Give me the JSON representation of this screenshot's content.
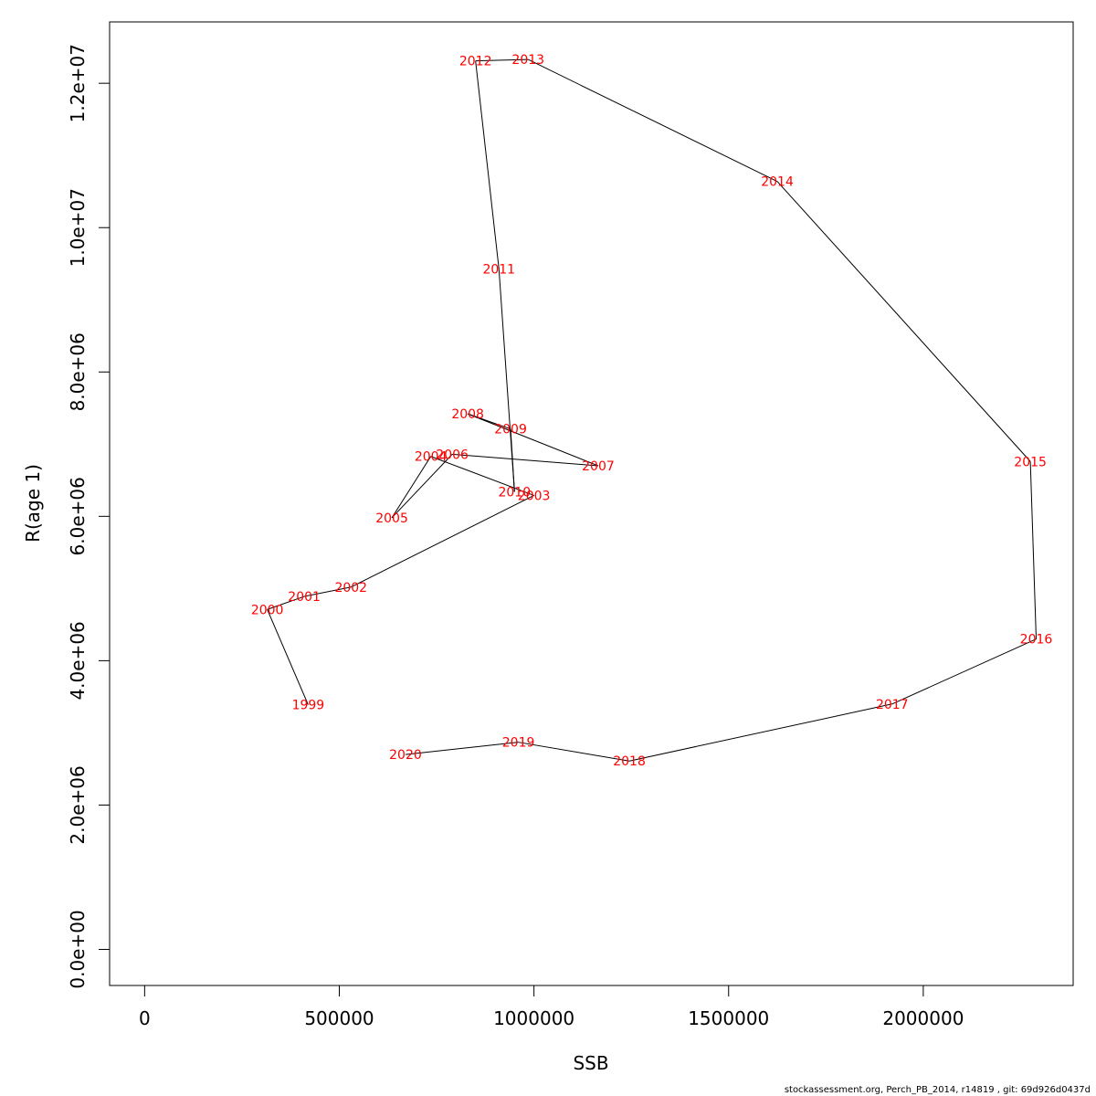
{
  "chart_data": {
    "type": "line",
    "xlabel": "SSB",
    "ylabel": "R(age 1)",
    "xlim": [
      -90000,
      2385000
    ],
    "ylim": [
      -500000,
      12850000
    ],
    "x_ticks": [
      {
        "value": 0,
        "label": "0"
      },
      {
        "value": 500000,
        "label": "500000"
      },
      {
        "value": 1000000,
        "label": "1000000"
      },
      {
        "value": 1500000,
        "label": "1500000"
      },
      {
        "value": 2000000,
        "label": "2000000"
      }
    ],
    "y_ticks": [
      {
        "value": 0,
        "label": "0.0e+00"
      },
      {
        "value": 2000000,
        "label": "2.0e+06"
      },
      {
        "value": 4000000,
        "label": "4.0e+06"
      },
      {
        "value": 6000000,
        "label": "6.0e+06"
      },
      {
        "value": 8000000,
        "label": "8.0e+06"
      },
      {
        "value": 10000000,
        "label": "1.0e+07"
      },
      {
        "value": 12000000,
        "label": "1.2e+07"
      }
    ],
    "grid": false,
    "line_color": "#000000",
    "label_color": "#ff0000",
    "points": [
      {
        "label": "1999",
        "ssb": 420000,
        "r": 3390000
      },
      {
        "label": "2000",
        "ssb": 315000,
        "r": 4710000
      },
      {
        "label": "2001",
        "ssb": 410000,
        "r": 4890000
      },
      {
        "label": "2002",
        "ssb": 530000,
        "r": 5020000
      },
      {
        "label": "2003",
        "ssb": 1000000,
        "r": 6290000
      },
      {
        "label": "2004",
        "ssb": 735000,
        "r": 6830000
      },
      {
        "label": "2005",
        "ssb": 635000,
        "r": 5980000
      },
      {
        "label": "2006",
        "ssb": 790000,
        "r": 6860000
      },
      {
        "label": "2007",
        "ssb": 1165000,
        "r": 6700000
      },
      {
        "label": "2008",
        "ssb": 830000,
        "r": 7420000
      },
      {
        "label": "2009",
        "ssb": 940000,
        "r": 7210000
      },
      {
        "label": "2010",
        "ssb": 950000,
        "r": 6340000
      },
      {
        "label": "2011",
        "ssb": 910000,
        "r": 9430000
      },
      {
        "label": "2012",
        "ssb": 850000,
        "r": 12310000
      },
      {
        "label": "2013",
        "ssb": 985000,
        "r": 12330000
      },
      {
        "label": "2014",
        "ssb": 1625000,
        "r": 10640000
      },
      {
        "label": "2015",
        "ssb": 2275000,
        "r": 6760000
      },
      {
        "label": "2016",
        "ssb": 2290000,
        "r": 4300000
      },
      {
        "label": "2017",
        "ssb": 1920000,
        "r": 3400000
      },
      {
        "label": "2018",
        "ssb": 1245000,
        "r": 2610000
      },
      {
        "label": "2019",
        "ssb": 960000,
        "r": 2870000
      },
      {
        "label": "2020",
        "ssb": 670000,
        "r": 2700000
      }
    ]
  },
  "footer": "stockassessment.org, Perch_PB_2014, r14819 , git: 69d926d0437d"
}
